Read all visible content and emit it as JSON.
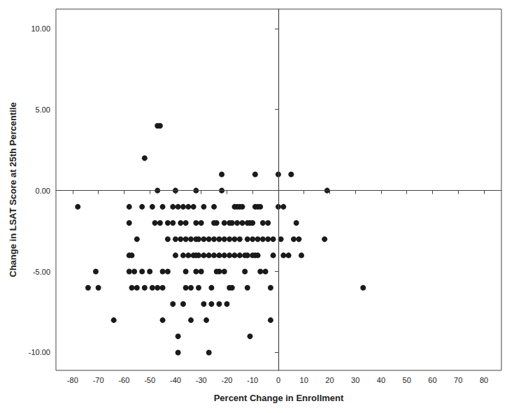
{
  "chart_data": {
    "type": "scatter",
    "x_label": "Percent Change in Enrollment",
    "y_label": "Change in LSAT Score at 25th Percentile",
    "color": "#1a1a1a",
    "marker": "circle",
    "grid": false,
    "xlim": [
      -86.5,
      86.8
    ],
    "ylim": [
      -11.1,
      11.2
    ],
    "xticks": [
      -80,
      -70,
      -60,
      -50,
      -40,
      -30,
      -20,
      -10,
      0,
      10,
      20,
      30,
      40,
      50,
      60,
      70,
      80
    ],
    "yticks": [
      {
        "value": -10,
        "label": "-10.00"
      },
      {
        "value": -5,
        "label": "-5.00"
      },
      {
        "value": 0,
        "label": "0.00"
      },
      {
        "value": 5,
        "label": "5.00"
      },
      {
        "value": 10,
        "label": "10.00"
      }
    ],
    "reference_lines": {
      "x": [
        0
      ],
      "y": [
        0
      ]
    },
    "x": [
      -47,
      -46,
      -52,
      -22,
      -9,
      0,
      5,
      -47,
      -40,
      -32,
      -22,
      19,
      -78,
      -58,
      -53,
      -49,
      -45,
      -41,
      -39,
      -37,
      -35,
      -33,
      -29,
      -25,
      -17,
      -16,
      -15,
      -14,
      -9,
      -8,
      -7,
      0,
      2,
      -58,
      -48,
      -46,
      -43,
      -41,
      -38,
      -36,
      -32,
      -30,
      -25,
      -24,
      -21,
      -19,
      -18,
      -16,
      -14,
      -12,
      -11,
      -10,
      -6,
      -4,
      7,
      -55,
      -43,
      -40,
      -38,
      -36,
      -34,
      -32,
      -31,
      -29,
      -27,
      -25,
      -23,
      -21,
      -19,
      -17,
      -15,
      -12,
      -10,
      -8,
      -6,
      -4,
      -2,
      1,
      6,
      8,
      18,
      -58,
      -57,
      -40,
      -37,
      -35,
      -33,
      -32,
      -31,
      -29,
      -27,
      -25,
      -23,
      -21,
      -19,
      -17,
      -15,
      -13,
      -12,
      -10,
      -9,
      -8,
      -2,
      2,
      4,
      9,
      -71,
      -58,
      -56,
      -53,
      -50,
      -45,
      -43,
      -36,
      -32,
      -30,
      -24,
      -23,
      -21,
      -13,
      -7,
      -5,
      -74,
      -70,
      -57,
      -55,
      -52,
      -49,
      -47,
      -45,
      -36,
      -34,
      -31,
      -26,
      -19,
      -18,
      -12,
      -3,
      33,
      -41,
      -37,
      -29,
      -26,
      -23,
      -20,
      -64,
      -45,
      -34,
      -28,
      -3,
      -39,
      -11,
      -39,
      -27
    ],
    "values": [
      4,
      4,
      2,
      1,
      1,
      1,
      1,
      0,
      0,
      0,
      0,
      0,
      -1,
      -1,
      -1,
      -1,
      -1,
      -1,
      -1,
      -1,
      -1,
      -1,
      -1,
      -1,
      -1,
      -1,
      -1,
      -1,
      -1,
      -1,
      -1,
      -1,
      -1,
      -2,
      -2,
      -2,
      -2,
      -2,
      -2,
      -2,
      -2,
      -2,
      -2,
      -2,
      -2,
      -2,
      -2,
      -2,
      -2,
      -2,
      -2,
      -2,
      -2,
      -2,
      -2,
      -3,
      -3,
      -3,
      -3,
      -3,
      -3,
      -3,
      -3,
      -3,
      -3,
      -3,
      -3,
      -3,
      -3,
      -3,
      -3,
      -3,
      -3,
      -3,
      -3,
      -3,
      -3,
      -3,
      -3,
      -3,
      -3,
      -4,
      -4,
      -4,
      -4,
      -4,
      -4,
      -4,
      -4,
      -4,
      -4,
      -4,
      -4,
      -4,
      -4,
      -4,
      -4,
      -4,
      -4,
      -4,
      -4,
      -4,
      -4,
      -4,
      -4,
      -4,
      -5,
      -5,
      -5,
      -5,
      -5,
      -5,
      -5,
      -5,
      -5,
      -5,
      -5,
      -5,
      -5,
      -5,
      -5,
      -5,
      -6,
      -6,
      -6,
      -6,
      -6,
      -6,
      -6,
      -6,
      -6,
      -6,
      -6,
      -6,
      -6,
      -6,
      -6,
      -6,
      -6,
      -7,
      -7,
      -7,
      -7,
      -7,
      -7,
      -8,
      -8,
      -8,
      -8,
      -8,
      -9,
      -9,
      -10,
      -10
    ]
  }
}
